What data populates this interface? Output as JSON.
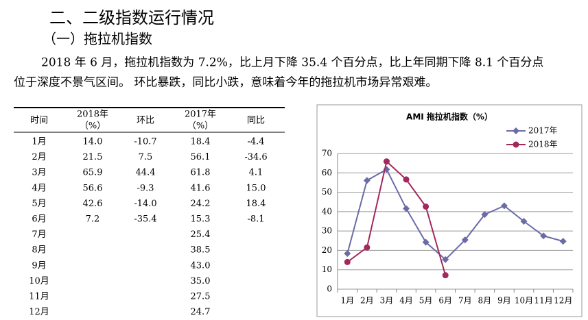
{
  "heading": "二、二级指数运行情况",
  "subheading": "（一）拖拉机指数",
  "paragraph": [
    "2018 年 6 月，拖拉机指数为 7.2%，比上月下降 35.4 个百分点，比上年同期下降 8.1 个百分点",
    "位于深度不景气区间。 环比暴跌，同比小跌，意味着今年的拖拉机市场异常艰难。"
  ],
  "table": {
    "header": [
      [
        "时间"
      ],
      [
        "2018年",
        "（%）"
      ],
      [
        "环比"
      ],
      [
        "2017年",
        "（%）"
      ],
      [
        "同比"
      ]
    ],
    "rows": [
      [
        "1月",
        "14.0",
        "-10.7",
        "18.4",
        "-4.4"
      ],
      [
        "2月",
        "21.5",
        "7.5",
        "56.1",
        "-34.6"
      ],
      [
        "3月",
        "65.9",
        "44.4",
        "61.8",
        "4.1"
      ],
      [
        "4月",
        "56.6",
        "-9.3",
        "41.6",
        "15.0"
      ],
      [
        "5月",
        "42.6",
        "-14.0",
        "24.2",
        "18.4"
      ],
      [
        "6月",
        "7.2",
        "-35.4",
        "15.3",
        "-8.1"
      ],
      [
        "7月",
        null,
        null,
        "25.4",
        null
      ],
      [
        "8月",
        null,
        null,
        "38.5",
        null
      ],
      [
        "9月",
        null,
        null,
        "43.0",
        null
      ],
      [
        "10月",
        null,
        null,
        "35.0",
        null
      ],
      [
        "11月",
        null,
        null,
        "27.5",
        null
      ],
      [
        "12月",
        null,
        null,
        "24.7",
        null
      ]
    ]
  },
  "chart_data": {
    "type": "line",
    "title": "AMI 拖拉机指数（%）",
    "categories": [
      "1月",
      "2月",
      "3月",
      "4月",
      "5月",
      "6月",
      "7月",
      "8月",
      "9月",
      "10月",
      "11月",
      "12月"
    ],
    "series": [
      {
        "name": "2017年",
        "color": "#6b6ba8",
        "marker": "diamond",
        "values": [
          18.4,
          56.1,
          61.8,
          41.6,
          24.2,
          15.3,
          25.4,
          38.5,
          43.0,
          35.0,
          27.5,
          24.7
        ]
      },
      {
        "name": "2018年",
        "color": "#a3285c",
        "marker": "circle",
        "values": [
          14.0,
          21.5,
          65.9,
          56.6,
          42.6,
          7.2,
          null,
          null,
          null,
          null,
          null,
          null
        ]
      }
    ],
    "ylim": [
      0,
      70
    ],
    "yticks": [
      0,
      10,
      20,
      30,
      40,
      50,
      60,
      70
    ],
    "grid": true,
    "legend": "top-right"
  }
}
